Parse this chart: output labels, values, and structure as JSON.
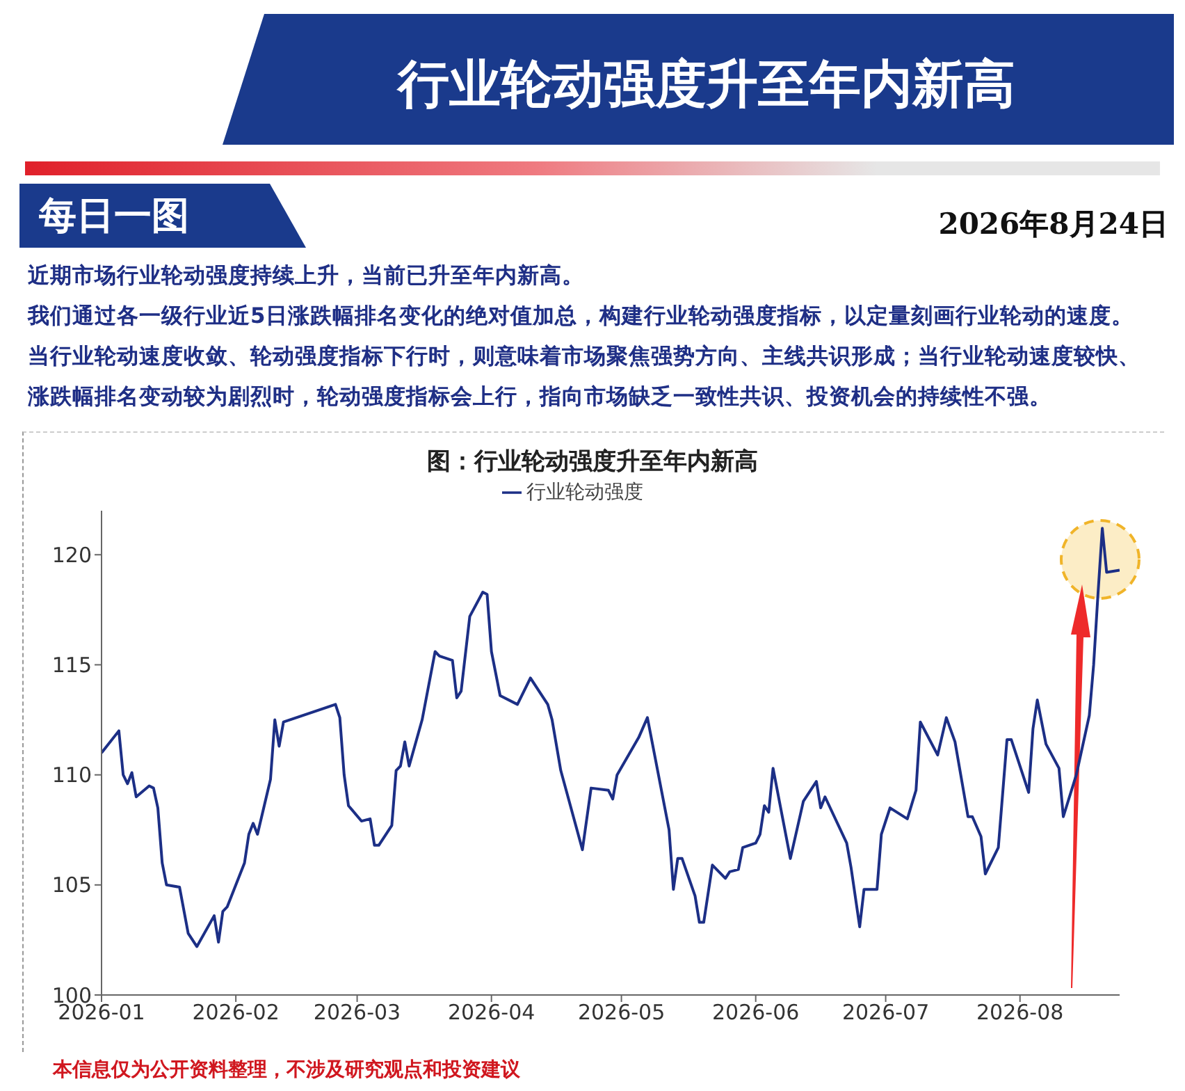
{
  "chart_data": {
    "type": "line",
    "title": "行业轮动强度升至年内新高",
    "subtitle": "图：行业轮动强度升至年内新高",
    "annotations": [
      "每日一图",
      "2026年8月24日",
      "近期市场行业轮动强度持续上升，当前已升至年内新高。",
      "我们通过各一级行业近5日涨跌幅排名变化的绝对值加总，构建行业轮动强度指标，以定量刻画行业轮动的速度。",
      "当行业轮动速度收敛、轮动强度指标下行时，则意味着市场聚焦强势方向、主线共识形成；当行业轮动速度较快、涨跌幅排名变动较为剧烈时，轮动强度指标会上行，指向市场缺乏一致性共识、投资机会的持续性不强。",
      "本信息仅为公开资料整理，不涉及研究观点和投资建议"
    ],
    "x": [
      "2026-01-01",
      "2026-01-05",
      "2026-01-06",
      "2026-01-07",
      "2026-01-08",
      "2026-01-09",
      "2026-01-12",
      "2026-01-13",
      "2026-01-14",
      "2026-01-15",
      "2026-01-16",
      "2026-01-19",
      "2026-01-21",
      "2026-01-23",
      "2026-01-27",
      "2026-01-28",
      "2026-01-29",
      "2026-01-30",
      "2026-02-03",
      "2026-02-04",
      "2026-02-05",
      "2026-02-06",
      "2026-02-09",
      "2026-02-10",
      "2026-02-11",
      "2026-02-12",
      "2026-02-24",
      "2026-02-25",
      "2026-02-26",
      "2026-02-27",
      "2026-03-02",
      "2026-03-04",
      "2026-03-05",
      "2026-03-06",
      "2026-03-09",
      "2026-03-10",
      "2026-03-11",
      "2026-03-12",
      "2026-03-13",
      "2026-03-16",
      "2026-03-19",
      "2026-03-20",
      "2026-03-23",
      "2026-03-24",
      "2026-03-25",
      "2026-03-27",
      "2026-03-30",
      "2026-03-31",
      "2026-04-01",
      "2026-04-03",
      "2026-04-07",
      "2026-04-10",
      "2026-04-14",
      "2026-04-15",
      "2026-04-17",
      "2026-04-22",
      "2026-04-24",
      "2026-04-28",
      "2026-04-29",
      "2026-04-30",
      "2026-05-05",
      "2026-05-07",
      "2026-05-12",
      "2026-05-13",
      "2026-05-14",
      "2026-05-15",
      "2026-05-18",
      "2026-05-19",
      "2026-05-20",
      "2026-05-22",
      "2026-05-25",
      "2026-05-26",
      "2026-05-28",
      "2026-05-29",
      "2026-06-01",
      "2026-06-02",
      "2026-06-03",
      "2026-06-04",
      "2026-06-05",
      "2026-06-09",
      "2026-06-12",
      "2026-06-15",
      "2026-06-16",
      "2026-06-17",
      "2026-06-22",
      "2026-06-23",
      "2026-06-25",
      "2026-06-26",
      "2026-06-29",
      "2026-06-30",
      "2026-07-02",
      "2026-07-06",
      "2026-07-08",
      "2026-07-09",
      "2026-07-13",
      "2026-07-15",
      "2026-07-17",
      "2026-07-20",
      "2026-07-21",
      "2026-07-23",
      "2026-07-24",
      "2026-07-27",
      "2026-07-29",
      "2026-07-30",
      "2026-08-03",
      "2026-08-04",
      "2026-08-05",
      "2026-08-07",
      "2026-08-10",
      "2026-08-11",
      "2026-08-14",
      "2026-08-17",
      "2026-08-18",
      "2026-08-19",
      "2026-08-20",
      "2026-08-21",
      "2026-08-24"
    ],
    "series": [
      {
        "name": "行业轮动强度",
        "color": "#1c2f86",
        "values": [
          111.0,
          112.0,
          110.0,
          109.6,
          110.1,
          109.0,
          109.5,
          109.4,
          108.5,
          106.0,
          105.0,
          104.9,
          102.8,
          102.2,
          103.6,
          102.4,
          103.8,
          104.0,
          106.0,
          107.3,
          107.8,
          107.3,
          109.8,
          112.5,
          111.3,
          112.4,
          113.2,
          112.6,
          110.0,
          108.6,
          107.9,
          108.0,
          106.8,
          106.8,
          107.7,
          110.2,
          110.4,
          111.5,
          110.4,
          112.5,
          115.6,
          115.4,
          115.2,
          113.5,
          113.8,
          117.2,
          118.3,
          118.2,
          115.6,
          113.6,
          113.2,
          114.4,
          113.2,
          112.5,
          110.2,
          106.6,
          109.4,
          109.3,
          108.9,
          110.0,
          111.7,
          112.6,
          107.5,
          104.8,
          106.2,
          106.2,
          104.5,
          103.3,
          103.3,
          105.9,
          105.3,
          105.6,
          105.7,
          106.7,
          106.9,
          107.3,
          108.6,
          108.3,
          110.3,
          106.2,
          108.8,
          109.7,
          108.5,
          109.0,
          106.9,
          105.8,
          103.1,
          104.8,
          104.8,
          107.3,
          108.5,
          108.0,
          109.3,
          112.4,
          110.9,
          112.6,
          111.5,
          108.1,
          108.1,
          107.2,
          105.5,
          106.7,
          111.6,
          111.6,
          109.2,
          112.1,
          113.4,
          111.4,
          110.3,
          108.1,
          110.0,
          112.7,
          115.0,
          118.2,
          121.2,
          119.2,
          119.3
        ]
      }
    ],
    "xlim": [
      "2026-01-01",
      "2026-08-24"
    ],
    "xticks": [
      "2026-01",
      "2026-02",
      "2026-03",
      "2026-04",
      "2026-05",
      "2026-06",
      "2026-07",
      "2026-08"
    ],
    "ylim": [
      100,
      122
    ],
    "yticks": [
      100,
      105,
      110,
      115,
      120
    ],
    "grid": false,
    "legend": "top",
    "marker": "none",
    "line_style": "solid"
  }
}
